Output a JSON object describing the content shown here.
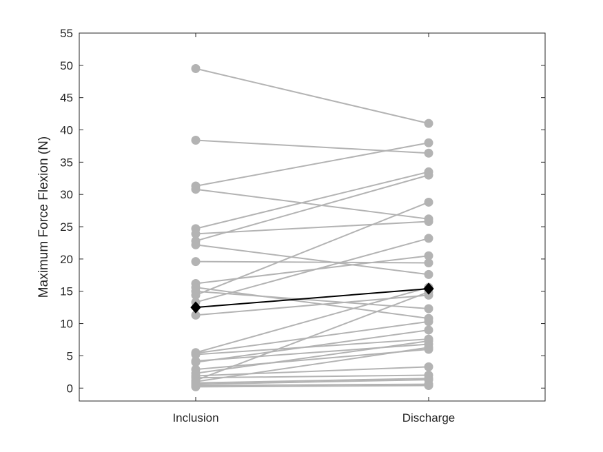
{
  "chart_data": {
    "type": "line",
    "categories": [
      "Inclusion",
      "Discharge"
    ],
    "ylabel": "Maximum Force Flexion (N)",
    "ylim": [
      -2,
      55
    ],
    "yticks": [
      0,
      5,
      10,
      15,
      20,
      25,
      30,
      35,
      40,
      45,
      50,
      55
    ],
    "grid": false,
    "individual_color": "#b3b3b3",
    "summary_color": "#000000",
    "individuals": [
      [
        49.5,
        41.0
      ],
      [
        38.4,
        36.4
      ],
      [
        31.3,
        38.0
      ],
      [
        30.8,
        26.2
      ],
      [
        24.7,
        33.5
      ],
      [
        23.9,
        25.8
      ],
      [
        22.8,
        33.0
      ],
      [
        22.2,
        17.6
      ],
      [
        19.6,
        19.4
      ],
      [
        16.2,
        20.5
      ],
      [
        15.6,
        10.8
      ],
      [
        15.0,
        12.3
      ],
      [
        14.4,
        28.8
      ],
      [
        13.3,
        23.2
      ],
      [
        11.3,
        14.4
      ],
      [
        5.5,
        15.6
      ],
      [
        5.4,
        10.3
      ],
      [
        5.2,
        7.6
      ],
      [
        4.2,
        6.8
      ],
      [
        4.0,
        9.0
      ],
      [
        2.9,
        6.0
      ],
      [
        2.3,
        7.3
      ],
      [
        1.9,
        3.3
      ],
      [
        1.6,
        2.0
      ],
      [
        1.2,
        14.9
      ],
      [
        1.0,
        6.3
      ],
      [
        0.8,
        1.5
      ],
      [
        0.6,
        1.3
      ],
      [
        0.4,
        0.6
      ],
      [
        0.2,
        0.4
      ]
    ],
    "summary": [
      12.5,
      15.4
    ]
  }
}
